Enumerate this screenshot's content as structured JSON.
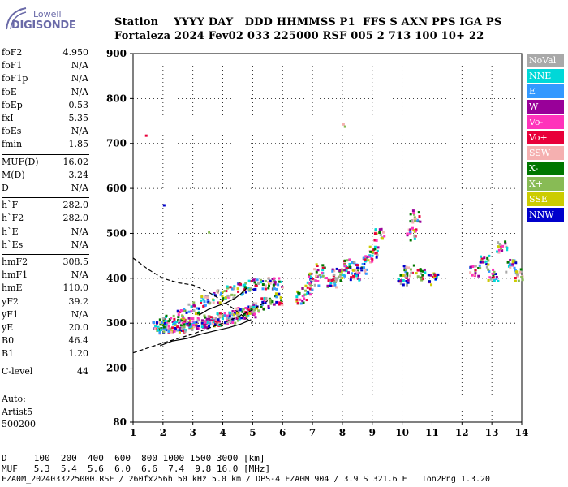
{
  "logo": {
    "line1": "Lowell",
    "line2": "DIGISONDE"
  },
  "header": {
    "row1": "Station    YYYY DAY   DDD HHMMSS P1  FFS S AXN PPS IGA PS",
    "row2": "Fortaleza 2024 Fev02 033 225000 RSF 005 2 713 100 10+ 22"
  },
  "params": {
    "group1": [
      {
        "name": "foF2",
        "value": "4.950"
      },
      {
        "name": "foF1",
        "value": "N/A"
      },
      {
        "name": "foF1p",
        "value": "N/A"
      },
      {
        "name": "foE",
        "value": "N/A"
      },
      {
        "name": "foEp",
        "value": "0.53"
      },
      {
        "name": "fxI",
        "value": "5.35"
      },
      {
        "name": "foEs",
        "value": "N/A"
      },
      {
        "name": "fmin",
        "value": "1.85"
      }
    ],
    "group2": [
      {
        "name": "MUF(D)",
        "value": "16.02"
      },
      {
        "name": "M(D)",
        "value": "3.24"
      },
      {
        "name": "D",
        "value": "N/A"
      }
    ],
    "group3": [
      {
        "name": "h`F",
        "value": "282.0"
      },
      {
        "name": "h`F2",
        "value": "282.0"
      },
      {
        "name": "h`E",
        "value": "N/A"
      },
      {
        "name": "h`Es",
        "value": "N/A"
      }
    ],
    "group4": [
      {
        "name": "hmF2",
        "value": "308.5"
      },
      {
        "name": "hmF1",
        "value": "N/A"
      },
      {
        "name": "hmE",
        "value": "110.0"
      },
      {
        "name": "yF2",
        "value": "39.2"
      },
      {
        "name": "yF1",
        "value": "N/A"
      },
      {
        "name": "yE",
        "value": "20.0"
      },
      {
        "name": "B0",
        "value": "46.4"
      },
      {
        "name": "B1",
        "value": "1.20"
      }
    ],
    "group5": [
      {
        "name": "C-level",
        "value": "44"
      }
    ]
  },
  "auto": {
    "line1": "Auto:",
    "line2": "Artist5",
    "line3": "500200"
  },
  "legend": [
    {
      "label": "NoVal",
      "color": "#a9a9a9"
    },
    {
      "label": "NNE",
      "color": "#00d8d8"
    },
    {
      "label": "E",
      "color": "#3399ff"
    },
    {
      "label": "W",
      "color": "#990099"
    },
    {
      "label": "Vo-",
      "color": "#ff33bb"
    },
    {
      "label": "Vo+",
      "color": "#e8003a"
    },
    {
      "label": "SSW",
      "color": "#f5b0b0"
    },
    {
      "label": "X-",
      "color": "#007700"
    },
    {
      "label": "X+",
      "color": "#88bb55"
    },
    {
      "label": "SSE",
      "color": "#cccc00"
    },
    {
      "label": "NNW",
      "color": "#0000cc"
    }
  ],
  "chart_data": {
    "type": "scatter",
    "title": "",
    "xlabel": "",
    "ylabel": "",
    "xlim": [
      1,
      14
    ],
    "ylim": [
      80,
      900
    ],
    "x_ticks": [
      "1",
      "2",
      "3",
      "4",
      "5",
      "6",
      "7",
      "8",
      "9",
      "10",
      "11",
      "12",
      "13",
      "14"
    ],
    "y_ticks": [
      "80",
      "200",
      "300",
      "400",
      "500",
      "600",
      "700",
      "800",
      "900"
    ],
    "grid": true,
    "legend_position": "right",
    "traces": [
      {
        "name": "O-trace-lower",
        "x": [
          1.8,
          2.0,
          2.3,
          2.6,
          3.0,
          3.4,
          3.8,
          4.2,
          4.6,
          4.9
        ],
        "y": [
          292,
          294,
          296,
          298,
          302,
          306,
          310,
          316,
          322,
          330
        ]
      },
      {
        "name": "O-trace-upper",
        "x": [
          1.9,
          2.2,
          2.6,
          3.0,
          3.4,
          3.8,
          4.2,
          4.6,
          5.0,
          5.4,
          5.8
        ],
        "y": [
          300,
          310,
          322,
          336,
          350,
          362,
          372,
          380,
          386,
          390,
          392
        ]
      },
      {
        "name": "X-trace",
        "x": [
          2.6,
          3.0,
          3.4,
          3.8,
          4.2,
          4.6,
          5.0,
          5.4,
          5.8
        ],
        "y": [
          296,
          300,
          304,
          310,
          316,
          326,
          336,
          346,
          356
        ]
      },
      {
        "name": "spread-F-7MHz",
        "x": [
          6.6,
          6.8,
          7.0,
          7.2
        ],
        "y": [
          360,
          380,
          400,
          420
        ]
      },
      {
        "name": "spread-F-8MHz",
        "x": [
          7.6,
          7.8,
          8.0,
          8.2,
          8.4,
          8.6,
          8.8,
          9.0,
          9.2
        ],
        "y": [
          390,
          410,
          420,
          430,
          410,
          420,
          440,
          460,
          500
        ]
      },
      {
        "name": "spread-F-10MHz",
        "x": [
          10.0,
          10.2,
          10.3,
          10.4,
          10.6,
          11.0
        ],
        "y": [
          400,
          420,
          500,
          540,
          410,
          400
        ]
      },
      {
        "name": "spread-F-13MHz",
        "x": [
          12.4,
          12.7,
          13.0,
          13.3,
          13.6,
          13.9
        ],
        "y": [
          420,
          440,
          410,
          470,
          430,
          410
        ]
      },
      {
        "name": "isolated",
        "x": [
          1.4,
          2.0,
          8.0,
          8.05,
          3.5
        ],
        "y": [
          720,
          565,
          745,
          740,
          505
        ]
      }
    ],
    "profile_curves": [
      {
        "name": "dashed-upper",
        "x": [
          1,
          1.5,
          2.0,
          2.5,
          3.0,
          3.5,
          4.0,
          4.4,
          4.8,
          5.0
        ],
        "y": [
          445,
          420,
          400,
          390,
          385,
          370,
          350,
          330,
          310,
          300
        ],
        "style": "dashed"
      },
      {
        "name": "dashed-lower",
        "x": [
          1,
          1.5,
          2.0,
          2.5,
          3.0,
          3.5,
          4.0,
          4.5,
          5.0,
          5.5
        ],
        "y": [
          234,
          245,
          256,
          266,
          276,
          288,
          300,
          314,
          330,
          350
        ],
        "style": "dashed"
      },
      {
        "name": "solid-profile",
        "x": [
          1.9,
          2.3,
          2.8,
          3.3,
          3.8,
          4.2,
          4.6,
          4.95
        ],
        "y": [
          250,
          260,
          266,
          276,
          284,
          290,
          298,
          308
        ],
        "style": "solid"
      },
      {
        "name": "solid-hook",
        "x": [
          3.2,
          3.5,
          3.8,
          4.1,
          4.4,
          4.6,
          4.8
        ],
        "y": [
          318,
          330,
          338,
          345,
          355,
          365,
          378
        ],
        "style": "solid"
      }
    ]
  },
  "footer": {
    "line1": "D     100  200  400  600  800 1000 1500 3000 [km]",
    "line2": "MUF   5.3  5.4  5.6  6.0  6.6  7.4  9.8 16.0 [MHz]",
    "line3": "FZA0M_2024033225000.RSF / 260fx256h 50 kHz 5.0 km / DPS-4 FZA0M 904 / 3.9 S 321.6 E   Ion2Png 1.3.20"
  }
}
